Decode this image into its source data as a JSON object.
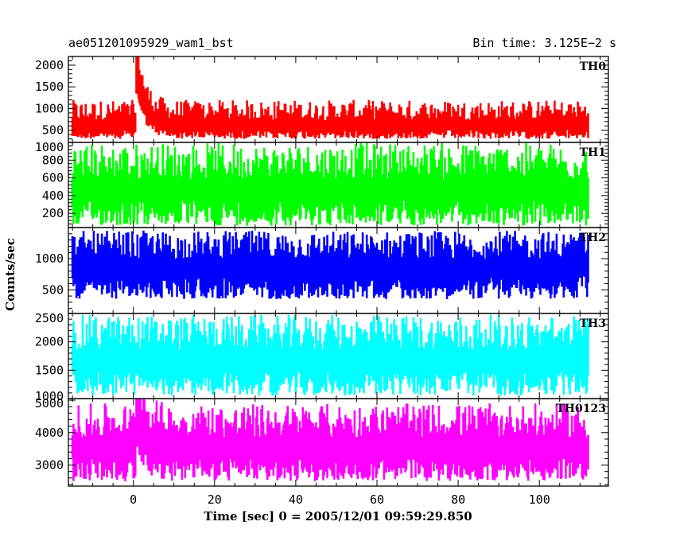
{
  "chart_data": {
    "type": "line",
    "title": "ae051201095929_wam1_bst",
    "bin_time_label": "Bin time: 3.125E−2 s",
    "xlabel": "Time [sec] 0 = 2005/12/01 09:59:29.850",
    "ylabel": "Counts/sec",
    "xlim": [
      -16,
      117
    ],
    "xticks": [
      0,
      20,
      40,
      60,
      80,
      100
    ],
    "data_xrange": [
      -15,
      112
    ],
    "panels": [
      {
        "name": "TH0",
        "color": "#ff0000",
        "ylim": [
          220,
          2200
        ],
        "yticks": [
          500,
          1000,
          1500,
          2000
        ],
        "baseline": 580,
        "noise_low": 300,
        "noise_high": 1200,
        "burst": {
          "peak_time": 1.0,
          "peak_value": 2200,
          "decay_sec": 2.0
        }
      },
      {
        "name": "TH1",
        "color": "#00ff00",
        "ylim": [
          40,
          1000
        ],
        "yticks": [
          200,
          400,
          600,
          800,
          1000
        ],
        "baseline": 450,
        "noise_low": 60,
        "noise_high": 1000
      },
      {
        "name": "TH2",
        "color": "#0000ff",
        "ylim": [
          120,
          1500
        ],
        "yticks": [
          500,
          1000
        ],
        "baseline": 850,
        "noise_low": 350,
        "noise_high": 1450
      },
      {
        "name": "TH3",
        "color": "#00ffff",
        "ylim": [
          1000,
          2500
        ],
        "yticks": [
          1000,
          1500,
          2000,
          2500
        ],
        "baseline": 1650,
        "noise_low": 1050,
        "noise_high": 2480
      },
      {
        "name": "TH0123",
        "color": "#ff00ff",
        "ylim": [
          2350,
          5050
        ],
        "yticks": [
          3000,
          4000,
          5000
        ],
        "baseline": 3500,
        "noise_low": 2500,
        "noise_high": 4900,
        "burst": {
          "peak_time": 1.0,
          "peak_value": 5050,
          "decay_sec": 2.0
        }
      }
    ]
  }
}
